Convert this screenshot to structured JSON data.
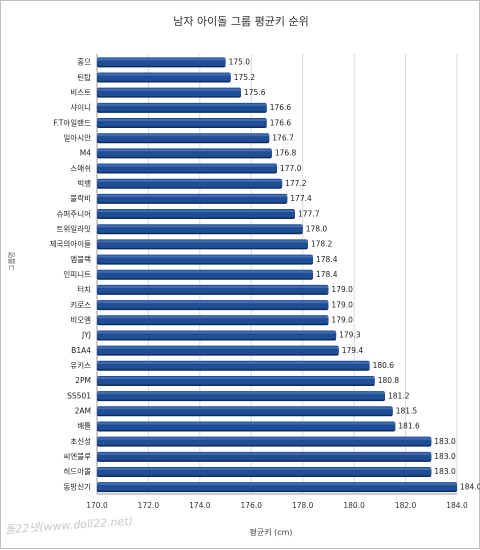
{
  "chart_data": {
    "type": "bar",
    "orientation": "horizontal",
    "title": "남자 아이돌 그룹 평균키 순위",
    "xlabel": "평균키 (cm)",
    "ylabel": "그룹명",
    "xlim": [
      170.0,
      184.0
    ],
    "xticks": [
      "170.0",
      "172.0",
      "174.0",
      "176.0",
      "178.0",
      "180.0",
      "182.0",
      "184.0"
    ],
    "grid": true,
    "bar_color": "#1f4e96",
    "categories": [
      "홍으",
      "틴탑",
      "비스트",
      "샤이니",
      "F.T아일랜드",
      "일아시안",
      "M4",
      "스매쉬",
      "빅뱅",
      "블락비",
      "슈퍼주니어",
      "트위일라잇",
      "제국의아이들",
      "엠블랙",
      "인피니트",
      "터치",
      "키로스",
      "비오엠",
      "JYJ",
      "B1A4",
      "유키스",
      "2PM",
      "SS501",
      "2AM",
      "배틀",
      "초신성",
      "씨엔블루",
      "히드아몰",
      "동방신기"
    ],
    "values": [
      175.0,
      175.2,
      175.6,
      176.6,
      176.6,
      176.7,
      176.8,
      177.0,
      177.2,
      177.4,
      177.7,
      178.0,
      178.2,
      178.4,
      178.4,
      179.0,
      179.0,
      179.0,
      179.3,
      179.4,
      180.6,
      180.8,
      181.2,
      181.5,
      181.6,
      183.0,
      183.0,
      183.0,
      184.0
    ],
    "value_labels": [
      "175.0",
      "175.2",
      "175.6",
      "176.6",
      "176.6",
      "176.7",
      "176.8",
      "177.0",
      "177.2",
      "177.4",
      "177.7",
      "178.0",
      "178.2",
      "178.4",
      "178.4",
      "179.0",
      "179.0",
      "179.0",
      "179.3",
      "179.4",
      "180.6",
      "180.8",
      "181.2",
      "181.5",
      "181.6",
      "183.0",
      "183.0",
      "183.0",
      "184.0"
    ]
  },
  "watermark": "돌22넷(www.doll22.net)"
}
